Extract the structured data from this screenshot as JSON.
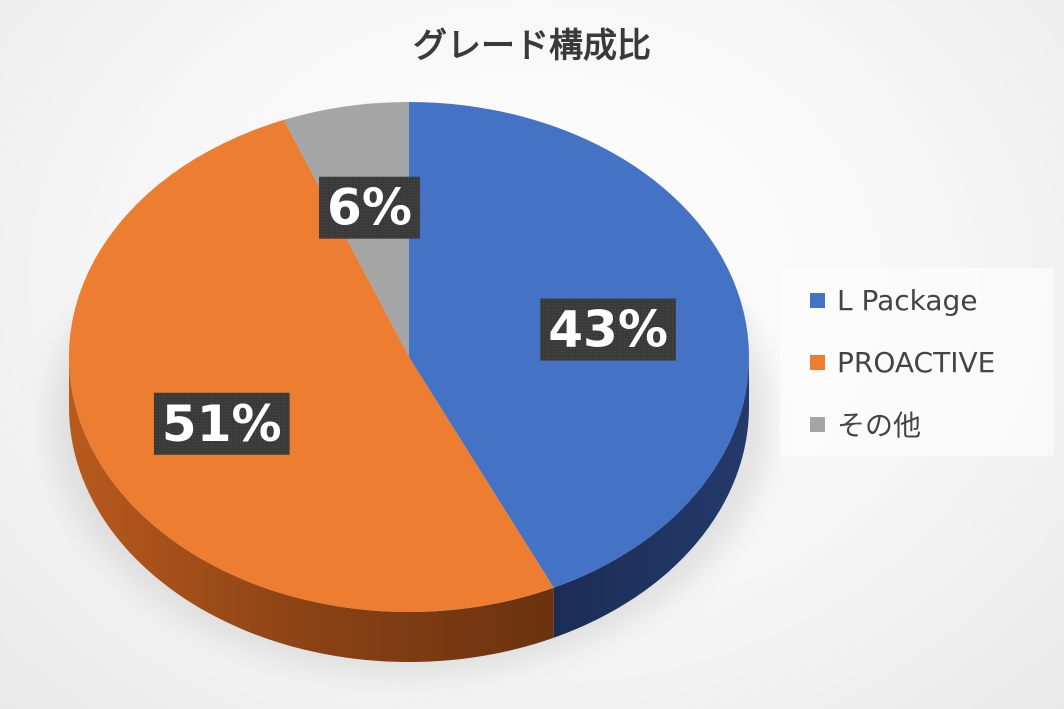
{
  "chart_data": {
    "type": "pie",
    "title": "グレード構成比",
    "slices": [
      {
        "name": "L Package",
        "value": 43,
        "label": "43%",
        "color": "#4472C4"
      },
      {
        "name": "PROACTIVE",
        "value": 51,
        "label": "51%",
        "color": "#ED7D31"
      },
      {
        "name": "その他",
        "value": 6,
        "label": "6%",
        "color": "#A5A5A5"
      }
    ],
    "legend_position": "right",
    "style": "3d"
  }
}
